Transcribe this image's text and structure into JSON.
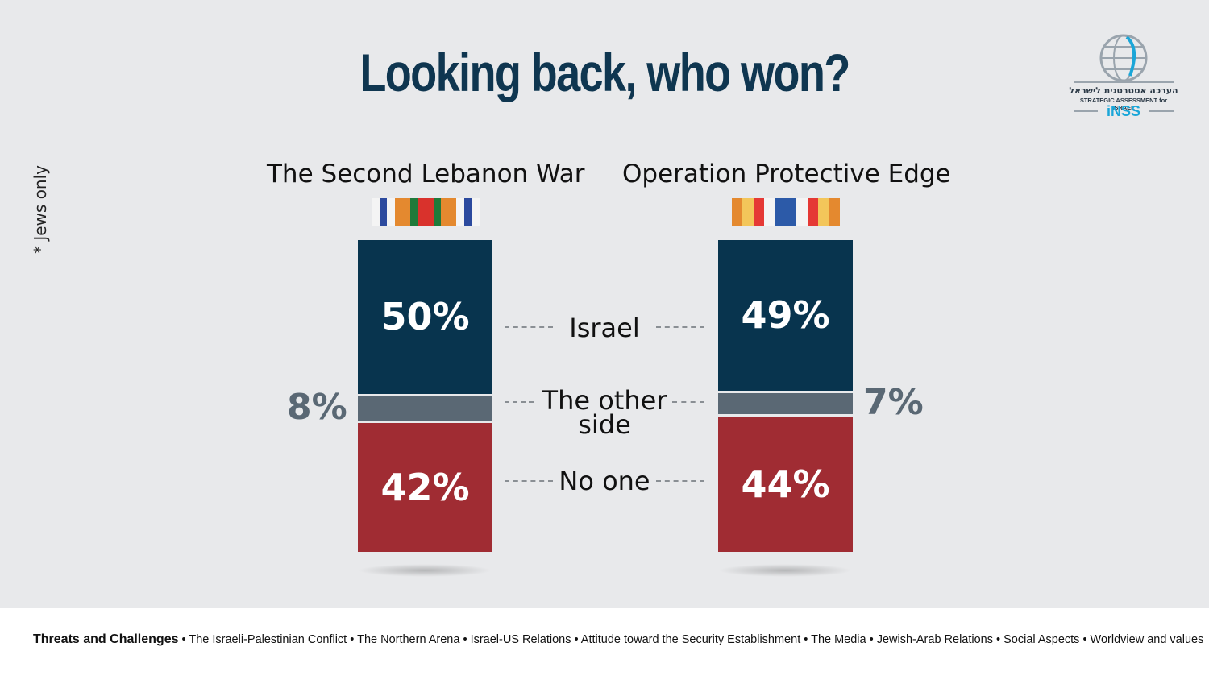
{
  "title": "Looking back, who won?",
  "note": "* Jews only",
  "colors": {
    "israel": "#08344e",
    "other": "#5a6874",
    "noone": "#a02c33",
    "title": "#0f3650"
  },
  "legend": {
    "israel": "Israel",
    "other_line1": "The other",
    "other_line2": "side",
    "noone": "No one"
  },
  "logo": {
    "hebrew": "הערכה אסטרטגית לישראל",
    "english": "STRATEGIC ASSESSMENT for ISRAEL",
    "brand": "iNSS"
  },
  "chart_data": {
    "type": "bar",
    "stacked": true,
    "categories": [
      "The Second Lebanon War",
      "Operation Protective Edge"
    ],
    "series": [
      {
        "name": "Israel",
        "values": [
          50,
          49
        ],
        "labels": [
          "50%",
          "49%"
        ]
      },
      {
        "name": "The other side",
        "values": [
          8,
          7
        ],
        "labels": [
          "8%",
          "7%"
        ]
      },
      {
        "name": "No one",
        "values": [
          42,
          44
        ],
        "labels": [
          "42%",
          "44%"
        ]
      }
    ]
  },
  "footer": {
    "lead": "Threats and Challenges",
    "items": "• The Israeli-Palestinian Conflict • The Northern  Arena • Israel-US Relations • Attitude toward the Security Establishment • The Media • Jewish-Arab Relations • Social Aspects • Worldview and values"
  }
}
